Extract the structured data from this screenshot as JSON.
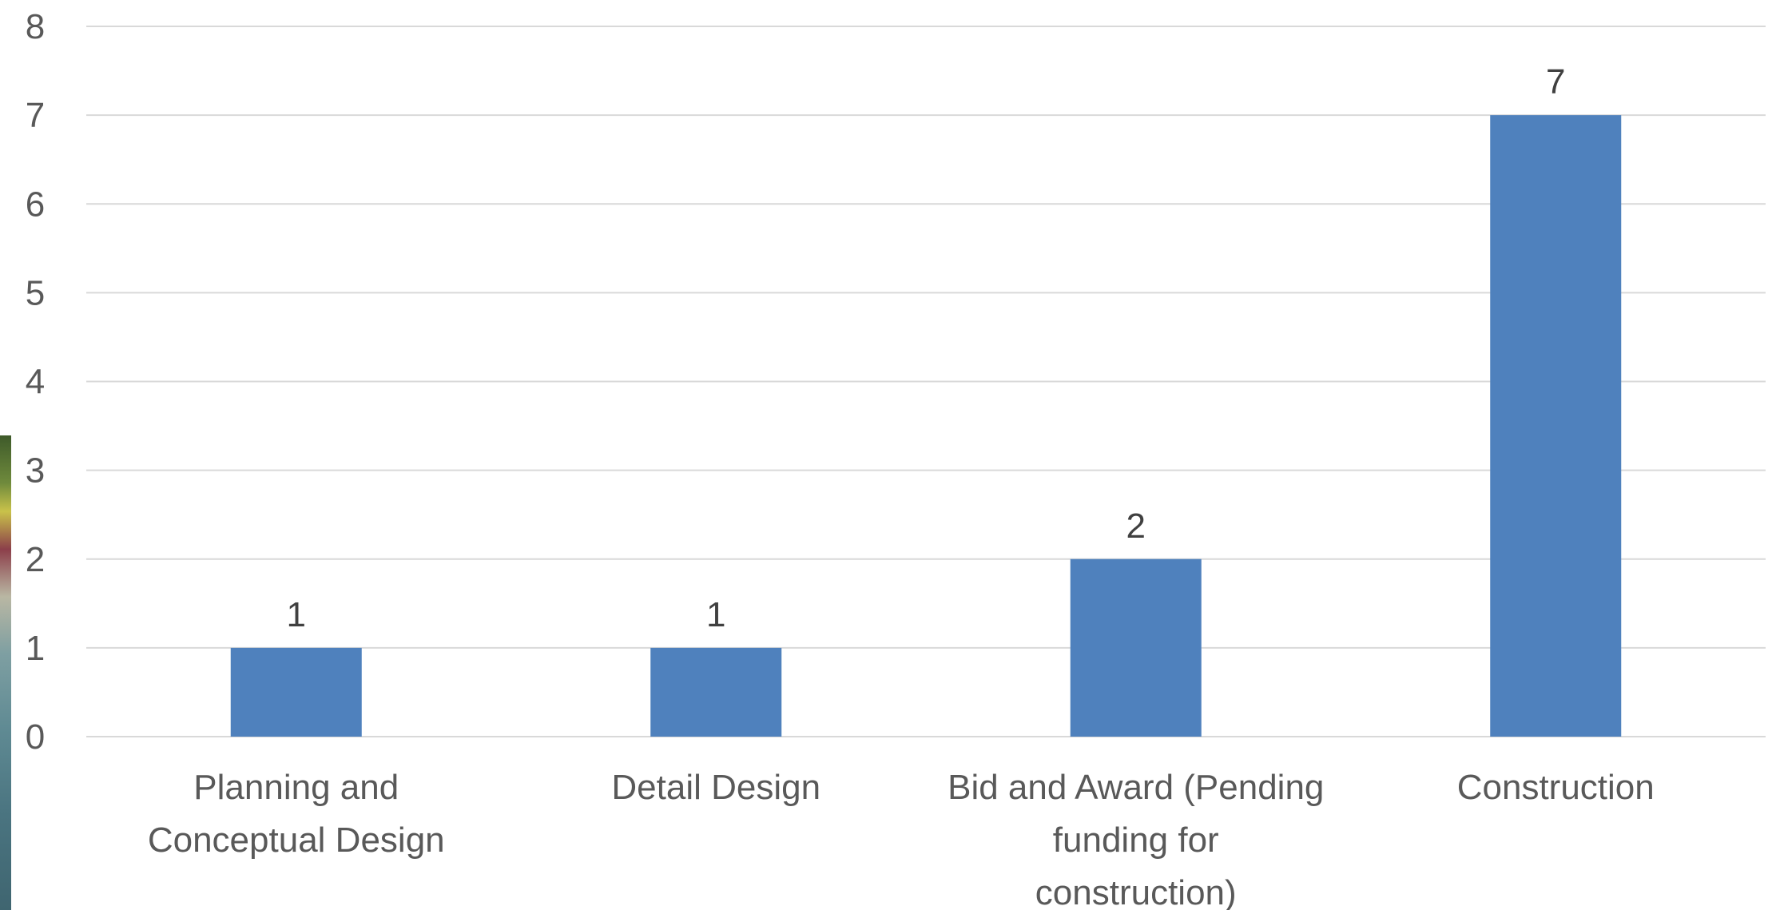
{
  "chart_data": {
    "type": "bar",
    "title": "",
    "xlabel": "",
    "ylabel": "",
    "categories": [
      [
        "Planning and",
        "Conceptual Design"
      ],
      [
        "Detail Design"
      ],
      [
        "Bid and Award (Pending",
        "funding for",
        "construction)"
      ],
      [
        "Construction"
      ]
    ],
    "values": [
      1,
      1,
      2,
      7
    ],
    "data_labels": [
      "1",
      "1",
      "2",
      "7"
    ],
    "y_ticks": [
      "0",
      "1",
      "2",
      "3",
      "4",
      "5",
      "6",
      "7",
      "8"
    ],
    "ylim": [
      0,
      8
    ],
    "grid": true,
    "legend": "none",
    "colors": {
      "bar": "#4f81bd",
      "gridline": "#d9d9d9",
      "axis_text": "#595959",
      "data_label": "#404040"
    }
  }
}
